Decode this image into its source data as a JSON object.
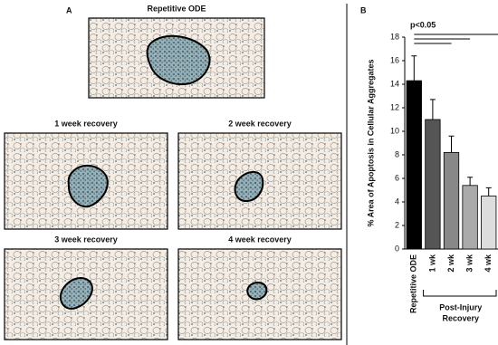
{
  "panel_a": {
    "label": "A",
    "images": [
      "Repetitive ODE",
      "1 week recovery",
      "2 week recovery",
      "3 week recovery",
      "4 week recovery"
    ]
  },
  "chart_data": {
    "type": "bar",
    "panel_label": "B",
    "y_label": "% Area of Apoptosis in Cellular Aggregates",
    "categories": [
      "Repetitive ODE",
      "1 wk",
      "2 wk",
      "3 wk",
      "4 wk"
    ],
    "values": [
      14.3,
      11.0,
      8.2,
      5.4,
      4.5
    ],
    "errors": [
      2.1,
      1.7,
      1.4,
      0.7,
      0.7
    ],
    "colors": [
      "#000000",
      "#555555",
      "#888888",
      "#aaaaaa",
      "#dddddd"
    ],
    "ylim": [
      0,
      18
    ],
    "yticks": [
      0,
      2,
      4,
      6,
      8,
      10,
      12,
      14,
      16,
      18
    ],
    "annotation": "p<0.05",
    "group_label": [
      "Post-Injury",
      "Recovery"
    ]
  }
}
